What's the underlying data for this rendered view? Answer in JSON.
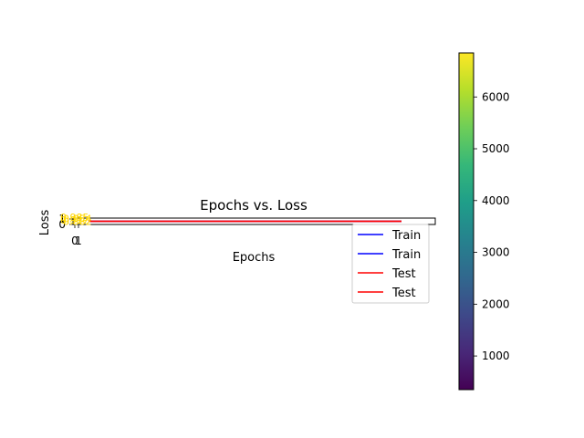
{
  "chart_data": {
    "type": "line",
    "title": "Epochs vs. Loss",
    "xlabel": "Epochs",
    "ylabel": "Loss",
    "xlim": [
      -0.05,
      1.05
    ],
    "ylim": [
      0,
      1
    ],
    "x_ticks": [
      "0",
      "1"
    ],
    "y_ticks": [
      "0",
      "1"
    ],
    "grid": false,
    "legend": {
      "location": "below-right",
      "entries": [
        {
          "label": "Train",
          "color": "#0000ff"
        },
        {
          "label": "Train",
          "color": "#0000ff"
        },
        {
          "label": "Test",
          "color": "#ff0000"
        },
        {
          "label": "Test",
          "color": "#ff0000"
        }
      ]
    },
    "series": [
      {
        "color": "#0000ff",
        "x": [
          0,
          1
        ],
        "y": [
          0.5,
          0.5
        ]
      },
      {
        "color": "#0000ff",
        "x": [
          0,
          1
        ],
        "y": [
          0.5,
          0.5
        ]
      },
      {
        "color": "#ff0000",
        "x": [
          0,
          1
        ],
        "y": [
          0.5,
          0.5
        ]
      },
      {
        "color": "#ff0000",
        "x": [
          0,
          1
        ],
        "y": [
          0.5,
          0.5
        ]
      }
    ],
    "overlapping_labels": {
      "color": "#ffd700",
      "texts": [
        "0.985",
        "0.954",
        "0.917",
        "0.882"
      ]
    },
    "colorbar": {
      "colormap": "viridis",
      "range": [
        350,
        6850
      ],
      "ticks": [
        1000,
        2000,
        3000,
        4000,
        5000,
        6000
      ],
      "stops": [
        "#440154",
        "#482878",
        "#3e4989",
        "#31688e",
        "#26828e",
        "#1f9e89",
        "#35b779",
        "#6ece58",
        "#b5de2b",
        "#fde725"
      ]
    }
  }
}
